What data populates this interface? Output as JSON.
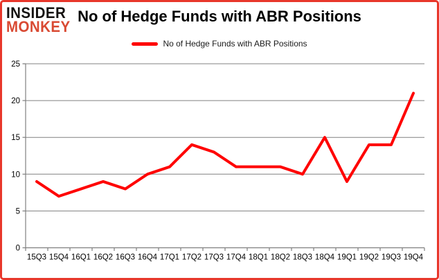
{
  "brand": {
    "line1": "INSIDER",
    "line2": "MONKEY"
  },
  "title": "No of Hedge Funds with ABR Positions",
  "legend": {
    "label": "No of Hedge Funds with ABR Positions",
    "swatch_color": "#ff0000"
  },
  "chart_data": {
    "type": "line",
    "categories": [
      "15Q3",
      "15Q4",
      "16Q1",
      "16Q2",
      "16Q3",
      "16Q4",
      "17Q1",
      "17Q2",
      "17Q3",
      "17Q4",
      "18Q1",
      "18Q2",
      "18Q3",
      "18Q4",
      "19Q1",
      "19Q2",
      "19Q3",
      "19Q4"
    ],
    "series": [
      {
        "name": "No of Hedge Funds with ABR Positions",
        "color": "#ff0000",
        "values": [
          9,
          7,
          8,
          9,
          8,
          10,
          11,
          14,
          13,
          11,
          11,
          11,
          10,
          15,
          9,
          14,
          14,
          21
        ]
      }
    ],
    "title": "No of Hedge Funds with ABR Positions",
    "xlabel": "",
    "ylabel": "",
    "ylim": [
      0,
      25
    ],
    "yticks": [
      0,
      5,
      10,
      15,
      20,
      25
    ],
    "grid": true,
    "legend_position": "top-center"
  },
  "colors": {
    "accent": "#d94a33",
    "line": "#ff0000",
    "grid": "#808080",
    "axis": "#7f7f7f",
    "border": "#e8372b",
    "text": "#000000"
  }
}
